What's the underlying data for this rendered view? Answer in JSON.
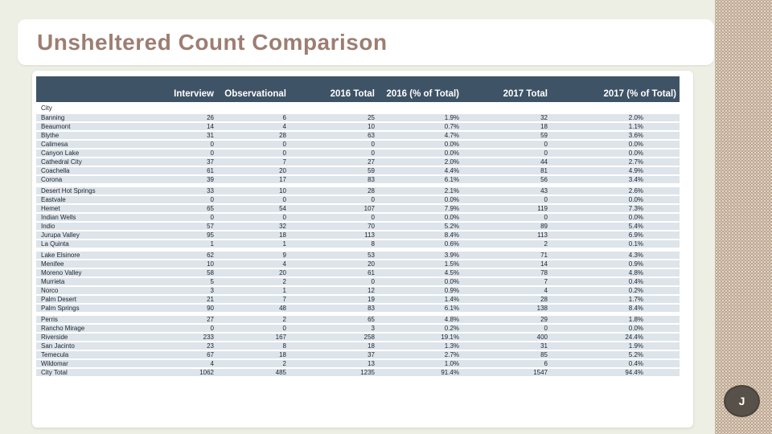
{
  "slide": {
    "title": "Unsheltered Count Comparison",
    "page_badge": "J",
    "colors": {
      "background": "#edefe5",
      "title_text": "#9c7e72",
      "table_header_bg": "#3e5366",
      "row_band": "#dde4ea",
      "side_band": "#b59a7e",
      "badge_bg": "#585149"
    }
  },
  "table": {
    "row_header_label": "City",
    "column_headers": [
      "Interview",
      "Observational",
      "2016 Total",
      "2016 (% of Total)",
      "2017 Total",
      "2017 (% of Total)"
    ],
    "rows": [
      {
        "city": "Banning",
        "interview": "26",
        "observational": "6",
        "t2016": "25",
        "p2016": "1.9%",
        "t2017": "32",
        "p2017": "2.0%",
        "gap": false,
        "total": false
      },
      {
        "city": "Beaumont",
        "interview": "14",
        "observational": "4",
        "t2016": "10",
        "p2016": "0.7%",
        "t2017": "18",
        "p2017": "1.1%",
        "gap": false,
        "total": false
      },
      {
        "city": "Blythe",
        "interview": "31",
        "observational": "28",
        "t2016": "63",
        "p2016": "4.7%",
        "t2017": "59",
        "p2017": "3.6%",
        "gap": false,
        "total": false
      },
      {
        "city": "Calimesa",
        "interview": "0",
        "observational": "0",
        "t2016": "0",
        "p2016": "0.0%",
        "t2017": "0",
        "p2017": "0.0%",
        "gap": false,
        "total": false
      },
      {
        "city": "Canyon Lake",
        "interview": "0",
        "observational": "0",
        "t2016": "0",
        "p2016": "0.0%",
        "t2017": "0",
        "p2017": "0.0%",
        "gap": false,
        "total": false
      },
      {
        "city": "Cathedral City",
        "interview": "37",
        "observational": "7",
        "t2016": "27",
        "p2016": "2.0%",
        "t2017": "44",
        "p2017": "2.7%",
        "gap": false,
        "total": false
      },
      {
        "city": "Coachella",
        "interview": "61",
        "observational": "20",
        "t2016": "59",
        "p2016": "4.4%",
        "t2017": "81",
        "p2017": "4.9%",
        "gap": false,
        "total": false
      },
      {
        "city": "Corona",
        "interview": "39",
        "observational": "17",
        "t2016": "83",
        "p2016": "6.1%",
        "t2017": "56",
        "p2017": "3.4%",
        "gap": false,
        "total": false
      },
      {
        "city": "Desert Hot Springs",
        "interview": "33",
        "observational": "10",
        "t2016": "28",
        "p2016": "2.1%",
        "t2017": "43",
        "p2017": "2.6%",
        "gap": true,
        "total": false
      },
      {
        "city": "Eastvale",
        "interview": "0",
        "observational": "0",
        "t2016": "0",
        "p2016": "0.0%",
        "t2017": "0",
        "p2017": "0.0%",
        "gap": false,
        "total": false
      },
      {
        "city": "Hemet",
        "interview": "65",
        "observational": "54",
        "t2016": "107",
        "p2016": "7.9%",
        "t2017": "119",
        "p2017": "7.3%",
        "gap": false,
        "total": false
      },
      {
        "city": "Indian Wells",
        "interview": "0",
        "observational": "0",
        "t2016": "0",
        "p2016": "0.0%",
        "t2017": "0",
        "p2017": "0.0%",
        "gap": false,
        "total": false
      },
      {
        "city": "Indio",
        "interview": "57",
        "observational": "32",
        "t2016": "70",
        "p2016": "5.2%",
        "t2017": "89",
        "p2017": "5.4%",
        "gap": false,
        "total": false
      },
      {
        "city": "Jurupa Valley",
        "interview": "95",
        "observational": "18",
        "t2016": "113",
        "p2016": "8.4%",
        "t2017": "113",
        "p2017": "6.9%",
        "gap": false,
        "total": false
      },
      {
        "city": "La Quinta",
        "interview": "1",
        "observational": "1",
        "t2016": "8",
        "p2016": "0.6%",
        "t2017": "2",
        "p2017": "0.1%",
        "gap": false,
        "total": false
      },
      {
        "city": "Lake Elsinore",
        "interview": "62",
        "observational": "9",
        "t2016": "53",
        "p2016": "3.9%",
        "t2017": "71",
        "p2017": "4.3%",
        "gap": true,
        "total": false
      },
      {
        "city": "Menifee",
        "interview": "10",
        "observational": "4",
        "t2016": "20",
        "p2016": "1.5%",
        "t2017": "14",
        "p2017": "0.9%",
        "gap": false,
        "total": false
      },
      {
        "city": "Moreno Valley",
        "interview": "58",
        "observational": "20",
        "t2016": "61",
        "p2016": "4.5%",
        "t2017": "78",
        "p2017": "4.8%",
        "gap": false,
        "total": false
      },
      {
        "city": "Murrieta",
        "interview": "5",
        "observational": "2",
        "t2016": "0",
        "p2016": "0.0%",
        "t2017": "7",
        "p2017": "0.4%",
        "gap": false,
        "total": false
      },
      {
        "city": "Norco",
        "interview": "3",
        "observational": "1",
        "t2016": "12",
        "p2016": "0.9%",
        "t2017": "4",
        "p2017": "0.2%",
        "gap": false,
        "total": false
      },
      {
        "city": "Palm Desert",
        "interview": "21",
        "observational": "7",
        "t2016": "19",
        "p2016": "1.4%",
        "t2017": "28",
        "p2017": "1.7%",
        "gap": false,
        "total": false
      },
      {
        "city": "Palm Springs",
        "interview": "90",
        "observational": "48",
        "t2016": "83",
        "p2016": "6.1%",
        "t2017": "138",
        "p2017": "8.4%",
        "gap": false,
        "total": false
      },
      {
        "city": "Perris",
        "interview": "27",
        "observational": "2",
        "t2016": "65",
        "p2016": "4.8%",
        "t2017": "29",
        "p2017": "1.8%",
        "gap": true,
        "total": false
      },
      {
        "city": "Rancho Mirage",
        "interview": "0",
        "observational": "0",
        "t2016": "3",
        "p2016": "0.2%",
        "t2017": "0",
        "p2017": "0.0%",
        "gap": false,
        "total": false
      },
      {
        "city": "Riverside",
        "interview": "233",
        "observational": "167",
        "t2016": "258",
        "p2016": "19.1%",
        "t2017": "400",
        "p2017": "24.4%",
        "gap": false,
        "total": false
      },
      {
        "city": "San Jacinto",
        "interview": "23",
        "observational": "8",
        "t2016": "18",
        "p2016": "1.3%",
        "t2017": "31",
        "p2017": "1.9%",
        "gap": false,
        "total": false
      },
      {
        "city": "Temecula",
        "interview": "67",
        "observational": "18",
        "t2016": "37",
        "p2016": "2.7%",
        "t2017": "85",
        "p2017": "5.2%",
        "gap": false,
        "total": false
      },
      {
        "city": "Wildomar",
        "interview": "4",
        "observational": "2",
        "t2016": "13",
        "p2016": "1.0%",
        "t2017": "6",
        "p2017": "0.4%",
        "gap": false,
        "total": false
      },
      {
        "city": "City Total",
        "interview": "1062",
        "observational": "485",
        "t2016": "1235",
        "p2016": "91.4%",
        "t2017": "1547",
        "p2017": "94.4%",
        "gap": false,
        "total": true
      }
    ]
  }
}
